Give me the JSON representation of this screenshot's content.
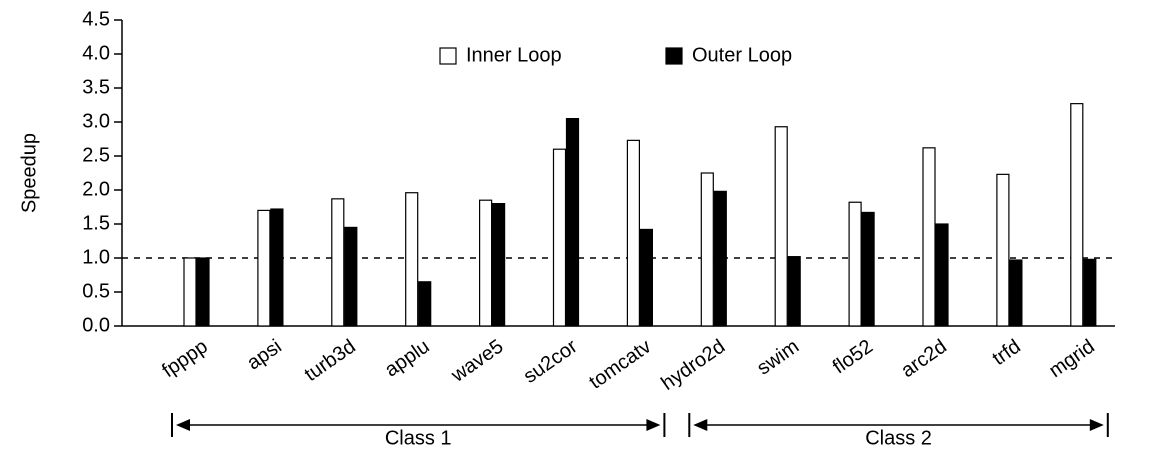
{
  "chart_data": {
    "type": "bar",
    "y_label": "Speedup",
    "categories": [
      "fpppp",
      "apsi",
      "turb3d",
      "applu",
      "wave5",
      "su2cor",
      "tomcatv",
      "hydro2d",
      "swim",
      "flo52",
      "arc2d",
      "trfd",
      "mgrid"
    ],
    "series": [
      {
        "name": "Inner Loop",
        "color": "#ffffff",
        "values": [
          1.0,
          1.7,
          1.87,
          1.96,
          1.85,
          2.6,
          2.73,
          2.25,
          2.93,
          1.82,
          2.62,
          2.23,
          3.27
        ]
      },
      {
        "name": "Outer Loop",
        "color": "#000000",
        "values": [
          1.0,
          1.72,
          1.45,
          0.65,
          1.8,
          3.05,
          1.42,
          1.98,
          1.02,
          1.67,
          1.5,
          0.97,
          0.98
        ]
      }
    ],
    "ylim": [
      0,
      4.5
    ],
    "yticks": [
      {
        "value": 0,
        "label": "0.0"
      },
      0.5,
      {
        "value": 1,
        "label": "1.0"
      },
      1.5,
      {
        "value": 2,
        "label": "2.0"
      },
      2.5,
      {
        "value": 3,
        "label": "3.0"
      },
      3.5,
      {
        "value": 4,
        "label": "4.0"
      },
      4.5
    ],
    "reference_line": 1,
    "legend": "top",
    "groups": [
      {
        "label": "Class 1",
        "count": 7
      },
      {
        "label": "Class 2",
        "count": 6
      }
    ]
  }
}
